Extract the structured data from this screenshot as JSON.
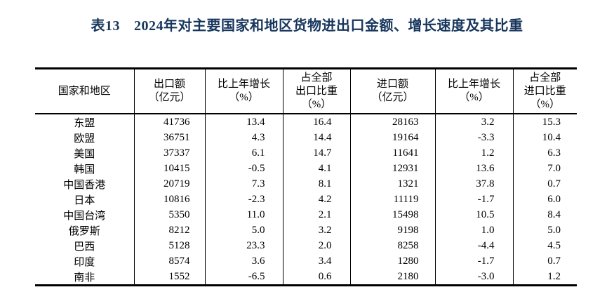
{
  "title": {
    "label": "表13",
    "text": "2024年对主要国家和地区货物进出口金额、增长速度及其比重"
  },
  "colors": {
    "title": "#17365D",
    "text": "#000000",
    "border": "#000000",
    "background": "#ffffff"
  },
  "table": {
    "columns": [
      {
        "id": "region",
        "lines": [
          "国家和地区"
        ]
      },
      {
        "id": "export-value",
        "lines": [
          "出口额",
          "（亿元）"
        ]
      },
      {
        "id": "export-growth",
        "lines": [
          "比上年增长",
          "（%）"
        ]
      },
      {
        "id": "export-share",
        "lines": [
          "占全部",
          "出口比重",
          "（%）"
        ]
      },
      {
        "id": "import-value",
        "lines": [
          "进口额",
          "（亿元）"
        ]
      },
      {
        "id": "import-growth",
        "lines": [
          "比上年增长",
          "（%）"
        ]
      },
      {
        "id": "import-share",
        "lines": [
          "占全部",
          "进口比重",
          "（%）"
        ]
      }
    ],
    "rows": [
      {
        "region": "东盟",
        "values": [
          "41736",
          "13.4",
          "16.4",
          "28163",
          "3.2",
          "15.3"
        ]
      },
      {
        "region": "欧盟",
        "values": [
          "36751",
          "4.3",
          "14.4",
          "19164",
          "-3.3",
          "10.4"
        ]
      },
      {
        "region": "美国",
        "values": [
          "37337",
          "6.1",
          "14.7",
          "11641",
          "1.2",
          "6.3"
        ]
      },
      {
        "region": "韩国",
        "values": [
          "10415",
          "-0.5",
          "4.1",
          "12931",
          "13.6",
          "7.0"
        ]
      },
      {
        "region": "中国香港",
        "values": [
          "20719",
          "7.3",
          "8.1",
          "1321",
          "37.8",
          "0.7"
        ]
      },
      {
        "region": "日本",
        "values": [
          "10816",
          "-2.3",
          "4.2",
          "11119",
          "-1.7",
          "6.0"
        ]
      },
      {
        "region": "中国台湾",
        "values": [
          "5350",
          "11.0",
          "2.1",
          "15498",
          "10.5",
          "8.4"
        ]
      },
      {
        "region": "俄罗斯",
        "values": [
          "8212",
          "5.0",
          "3.2",
          "9198",
          "1.0",
          "5.0"
        ]
      },
      {
        "region": "巴西",
        "values": [
          "5128",
          "23.3",
          "2.0",
          "8258",
          "-4.4",
          "4.5"
        ]
      },
      {
        "region": "印度",
        "values": [
          "8574",
          "3.6",
          "3.4",
          "1280",
          "-1.7",
          "0.7"
        ]
      },
      {
        "region": "南非",
        "values": [
          "1552",
          "-6.5",
          "0.6",
          "2180",
          "-3.0",
          "1.2"
        ]
      }
    ]
  }
}
